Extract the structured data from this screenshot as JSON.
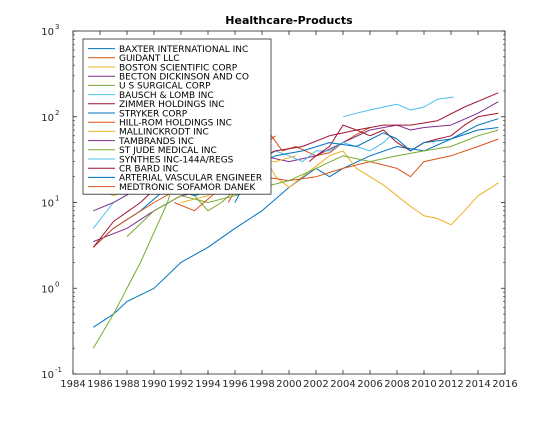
{
  "chart_data": {
    "type": "line",
    "title": "Healthcare-Products",
    "xlabel": "",
    "ylabel": "",
    "xlim": [
      1984,
      2016
    ],
    "ylim": [
      0.1,
      1000
    ],
    "yscale": "log",
    "grid": false,
    "legend_position": "top-left",
    "x_ticks": [
      1984,
      1986,
      1988,
      1990,
      1992,
      1994,
      1996,
      1998,
      2000,
      2002,
      2004,
      2006,
      2008,
      2010,
      2012,
      2014,
      2016
    ],
    "x_tick_labels": [
      "1984",
      "1986",
      "1988",
      "1990",
      "1992",
      "1994",
      "1996",
      "1998",
      "2000",
      "2002",
      "2004",
      "2006",
      "2008",
      "2010",
      "2012",
      "2014",
      "2016"
    ],
    "y_ticks": [
      0.1,
      1,
      10,
      100,
      1000
    ],
    "y_tick_labels": [
      {
        "base": "10",
        "exp": "-1"
      },
      {
        "base": "10",
        "exp": "0"
      },
      {
        "base": "10",
        "exp": "1"
      },
      {
        "base": "10",
        "exp": "2"
      },
      {
        "base": "10",
        "exp": "3"
      }
    ],
    "series": [
      {
        "name": "BAXTER INTERNATIONAL INC",
        "color": "#0072bd",
        "x": [
          1985.5,
          1987,
          1988,
          1990,
          1992,
          1994,
          1996,
          1998,
          2000,
          2002,
          2003,
          2004,
          2006,
          2008,
          2010,
          2012,
          2014,
          2015.5
        ],
        "y": [
          0.35,
          0.5,
          0.7,
          1.0,
          2.0,
          3.0,
          5.0,
          8.0,
          15,
          25,
          20,
          25,
          35,
          45,
          40,
          55,
          70,
          75
        ]
      },
      {
        "name": "GUIDANT LLC",
        "color": "#d95319",
        "x": [
          1995.5,
          1996,
          1997,
          1998,
          1998.7,
          1999.5,
          2000.5,
          2002,
          2003,
          2004,
          2005,
          2006
        ],
        "y": [
          10,
          14,
          20,
          35,
          60,
          40,
          45,
          35,
          38,
          50,
          62,
          75
        ]
      },
      {
        "name": "BOSTON SCIENTIFIC CORP",
        "color": "#edb120",
        "x": [
          1992,
          1994,
          1996,
          1998,
          1999,
          2000,
          2001,
          2003,
          2004,
          2005,
          2006,
          2007,
          2008,
          2009,
          2010,
          2011,
          2012,
          2013,
          2014,
          2015,
          2015.5
        ],
        "y": [
          10,
          12,
          28,
          40,
          20,
          15,
          20,
          35,
          40,
          25,
          20,
          16,
          12,
          9,
          7,
          6.5,
          5.5,
          8,
          12,
          15,
          17
        ]
      },
      {
        "name": "BECTON DICKINSON AND CO",
        "color": "#7e2f8e",
        "x": [
          1985.5,
          1988,
          1990,
          1992,
          1994,
          1996,
          1998,
          2000,
          2002,
          2004,
          2006,
          2008,
          2009,
          2010,
          2012,
          2014,
          2015.5
        ],
        "y": [
          3.5,
          5,
          8,
          12,
          14,
          20,
          35,
          30,
          35,
          50,
          70,
          80,
          70,
          75,
          80,
          110,
          150
        ]
      },
      {
        "name": "U S SURGICAL CORP",
        "color": "#77ac30",
        "x": [
          1985.5,
          1987,
          1989,
          1991,
          1992,
          1993,
          1994,
          1995,
          1996,
          1997,
          1998
        ],
        "y": [
          0.2,
          0.5,
          2.0,
          10,
          35,
          12,
          8,
          10,
          14,
          20,
          30
        ]
      },
      {
        "name": "BAUSCH & LOMB INC",
        "color": "#4dbeee",
        "x": [
          1985.5,
          1987,
          1989,
          1991,
          1992,
          1993,
          1995,
          1997,
          1999,
          2000,
          2001,
          2002,
          2003,
          2004,
          2005,
          2006,
          2007,
          2007.5
        ],
        "y": [
          5,
          10,
          15,
          35,
          30,
          25,
          22,
          25,
          40,
          35,
          30,
          40,
          40,
          50,
          45,
          40,
          50,
          60
        ]
      },
      {
        "name": "ZIMMER HOLDINGS INC",
        "color": "#a2142f",
        "x": [
          2001.5,
          2002,
          2003,
          2004,
          2005,
          2006,
          2007,
          2008,
          2009,
          2010,
          2011,
          2012,
          2013,
          2014,
          2015.5
        ],
        "y": [
          30,
          35,
          45,
          80,
          70,
          60,
          70,
          50,
          40,
          50,
          55,
          60,
          80,
          100,
          110
        ]
      },
      {
        "name": "STRYKER CORP",
        "color": "#0072bd",
        "x": [
          1985.5,
          1987,
          1989,
          1991,
          1993,
          1995,
          1997,
          1999,
          2001,
          2003,
          2005,
          2007,
          2008,
          2009,
          2010,
          2012,
          2014,
          2015.5
        ],
        "y": [
          3,
          5,
          8,
          15,
          12,
          15,
          25,
          35,
          40,
          50,
          45,
          65,
          55,
          40,
          50,
          55,
          80,
          95
        ]
      },
      {
        "name": "HILL-ROM HOLDINGS INC",
        "color": "#d95319",
        "x": [
          1985.5,
          1987,
          1990,
          1992,
          1995,
          1998,
          2000,
          2002,
          2004,
          2006,
          2008,
          2009,
          2010,
          2012,
          2014,
          2015.5
        ],
        "y": [
          3,
          5,
          10,
          15,
          15,
          20,
          18,
          20,
          25,
          30,
          25,
          20,
          30,
          35,
          45,
          55
        ]
      },
      {
        "name": "MALLINCKRODT INC",
        "color": "#edb120",
        "x": [
          1985.5,
          1987,
          1989,
          1991,
          1993,
          1995,
          1997,
          1999,
          2000.5
        ],
        "y": [
          15,
          12,
          16,
          22,
          25,
          20,
          30,
          30,
          35
        ]
      },
      {
        "name": "TAMBRANDS INC",
        "color": "#7e2f8e",
        "x": [
          1985.5,
          1987,
          1989,
          1991,
          1993,
          1995,
          1996,
          1997.5
        ],
        "y": [
          8,
          10,
          15,
          20,
          18,
          20,
          25,
          30
        ]
      },
      {
        "name": "ST JUDE MEDICAL INC",
        "color": "#77ac30",
        "x": [
          1988,
          1990,
          1992,
          1994,
          1996,
          1998,
          2000,
          2002,
          2004,
          2006,
          2008,
          2010,
          2012,
          2014,
          2015.5
        ],
        "y": [
          4,
          8,
          12,
          10,
          12,
          15,
          18,
          25,
          35,
          30,
          35,
          40,
          45,
          60,
          70
        ]
      },
      {
        "name": "SYNTHES INC-144A/REGS",
        "color": "#4dbeee",
        "x": [
          2004,
          2005,
          2006,
          2007,
          2008,
          2009,
          2010,
          2011,
          2012.2
        ],
        "y": [
          100,
          110,
          120,
          130,
          140,
          120,
          130,
          160,
          170
        ]
      },
      {
        "name": "CR BARD INC",
        "color": "#a2142f",
        "x": [
          1985.5,
          1987,
          1989,
          1991,
          1993,
          1995,
          1997,
          1999,
          2001,
          2003,
          2005,
          2007,
          2009,
          2011,
          2013,
          2015.5
        ],
        "y": [
          3,
          6,
          10,
          20,
          20,
          25,
          30,
          40,
          45,
          60,
          70,
          80,
          80,
          90,
          130,
          190
        ]
      },
      {
        "name": "ARTERIAL VASCULAR ENGINEER",
        "color": "#0072bd",
        "x": [
          1996,
          1997,
          1997.5,
          1998,
          1998.5
        ],
        "y": [
          10,
          20,
          40,
          25,
          30
        ]
      },
      {
        "name": "MEDTRONIC SOFAMOR DANEK",
        "color": "#d95319",
        "x": [
          1991.5,
          1993,
          1995,
          1996,
          1997,
          1998,
          1999
        ],
        "y": [
          10,
          8,
          15,
          25,
          30,
          45,
          60
        ]
      }
    ]
  }
}
